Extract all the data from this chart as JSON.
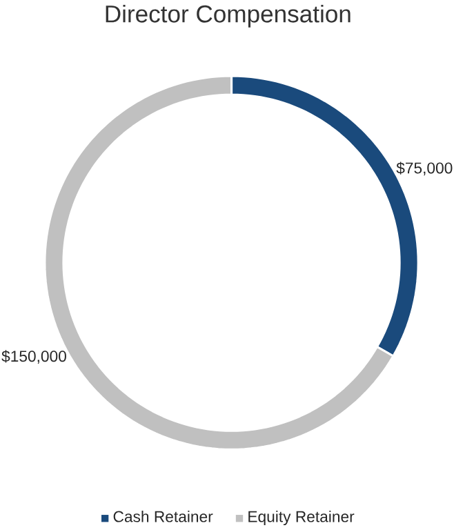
{
  "chart_data": {
    "type": "donut",
    "title": "Director Compensation",
    "categories": [
      "Cash Retainer",
      "Equity Retainer"
    ],
    "values": [
      75000,
      150000
    ],
    "colors": [
      "#1a4a7c",
      "#c0c0c0"
    ],
    "value_labels": [
      "$75,000",
      "$150,000"
    ],
    "legend": "bottom"
  }
}
